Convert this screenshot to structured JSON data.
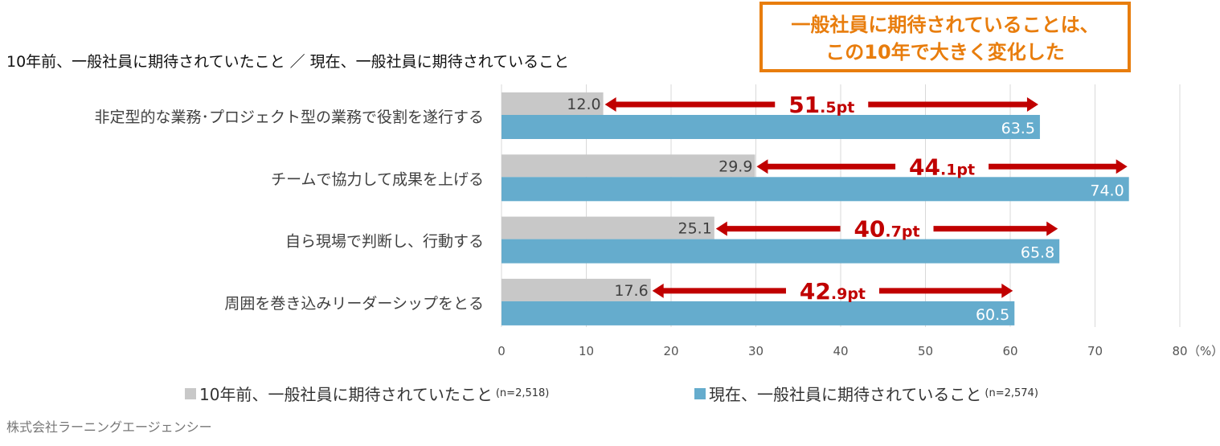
{
  "callout": {
    "line1": "一般社員に期待されていることは、",
    "line2": "この10年で大きく変化した"
  },
  "colors": {
    "past": "#c8c8c8",
    "now": "#65accd",
    "arrow": "#c00000",
    "callout": "#e87d0d"
  },
  "credit": "株式会社ラーニングエージェンシー",
  "chart_data": {
    "type": "bar",
    "orientation": "horizontal",
    "title": "10年前、一般社員に期待されていたこと ／ 現在、一般社員に期待されていること",
    "categories": [
      "非定型的な業務･プロジェクト型の業務で役割を遂行する",
      "チームで協力して成果を上げる",
      "自ら現場で判断し、行動する",
      "周囲を巻き込みリーダーシップをとる"
    ],
    "series": [
      {
        "name": "10年前、一般社員に期待されていたこと",
        "n": "(n=2,518)",
        "values": [
          12.0,
          29.9,
          25.1,
          17.6
        ]
      },
      {
        "name": "現在、一般社員に期待されていること",
        "n": "(n=2,574)",
        "values": [
          63.5,
          74.0,
          65.8,
          60.5
        ]
      }
    ],
    "differences": [
      {
        "big": "51",
        "small": ".5pt"
      },
      {
        "big": "44",
        "small": ".1pt"
      },
      {
        "big": "40",
        "small": ".7pt"
      },
      {
        "big": "42",
        "small": ".9pt"
      }
    ],
    "xlim": [
      0,
      80
    ],
    "xticks": [
      "0",
      "10",
      "20",
      "30",
      "40",
      "50",
      "60",
      "70",
      "80"
    ],
    "xunit": "（%）",
    "grid": true,
    "legend": "bottom"
  }
}
